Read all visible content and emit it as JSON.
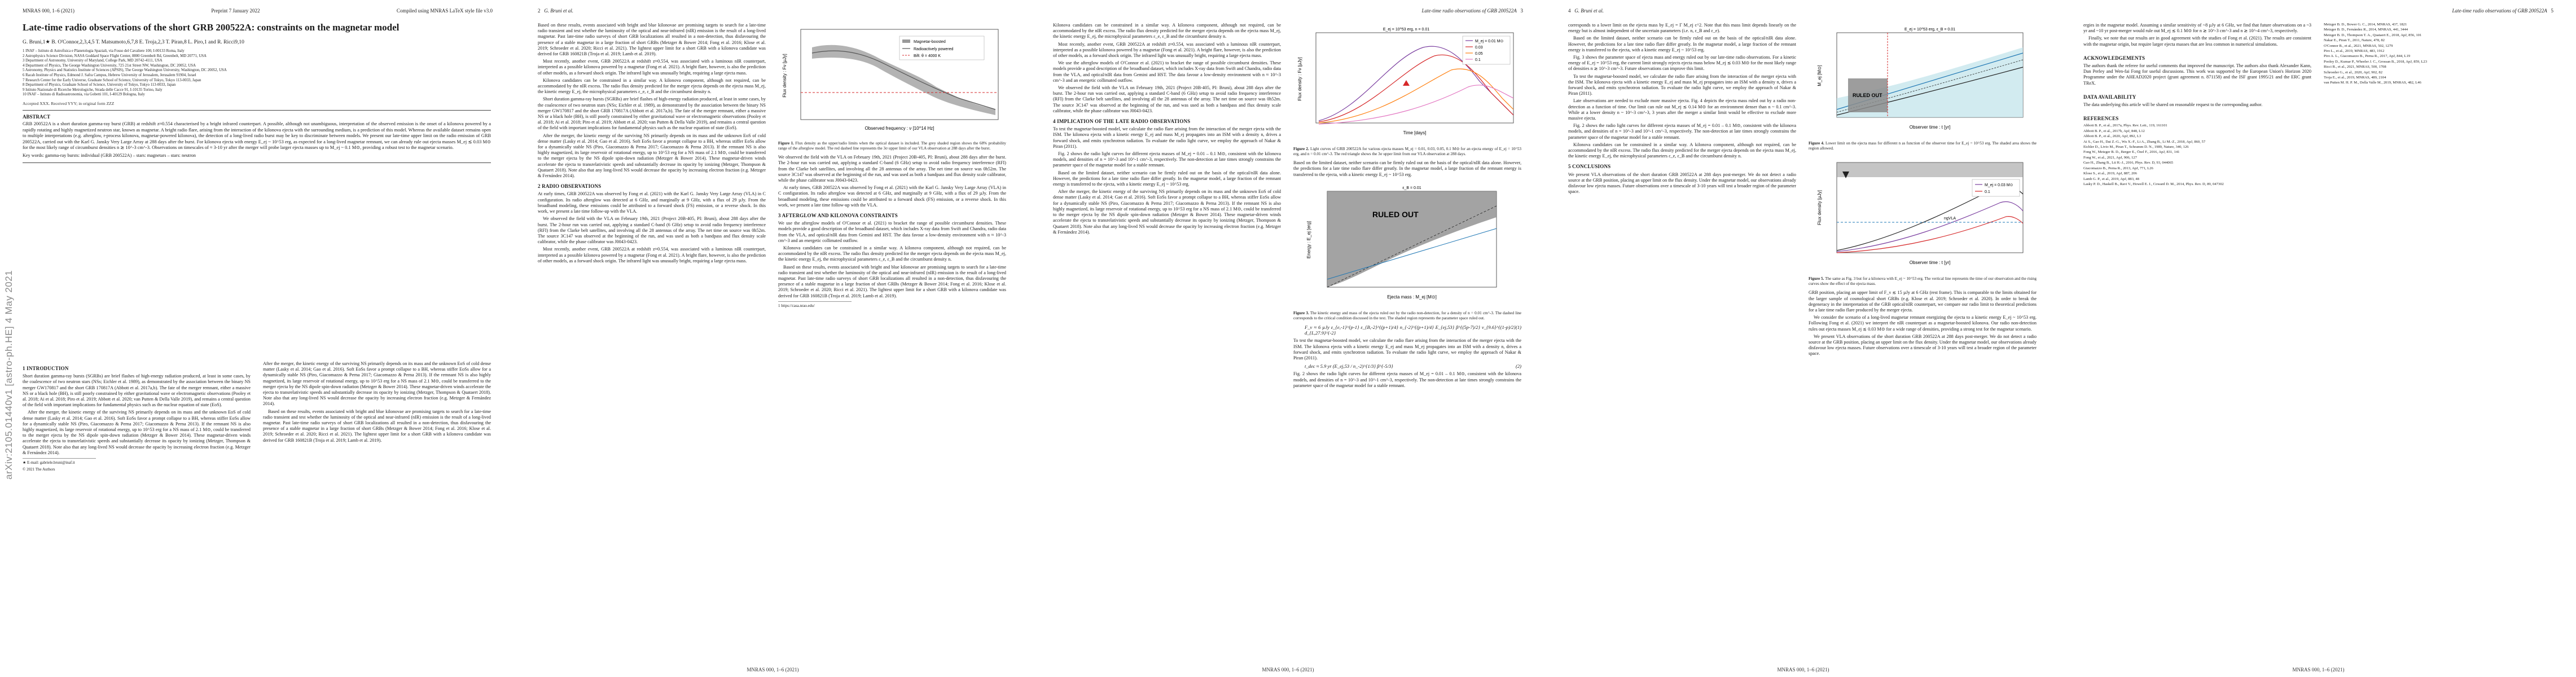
{
  "journal": "MNRAS 000, 1–6 (2021)",
  "footer": "MNRAS 000, 1–6 (2021)",
  "preprint_date": "Preprint 7 January 2022",
  "compiled": "Compiled using MNRAS LaTeX style file v3.0",
  "arxiv_stamp": "arXiv:2105.01440v1 [astro-ph.HE] 4 May 2021",
  "running_author": "G. Bruni et al.",
  "running_title": "Late-time radio observations of GRB 200522A",
  "page_numbers": [
    "2",
    "3",
    "4",
    "5"
  ],
  "title": "Late-time radio observations of the short GRB 200522A: constraints on the magnetar model",
  "authors": "G. Bruni,1★ B. O'Connor,2,3,4,5 T. Matsumoto,6,7,8 E. Troja,2,3 T. Piran,8 L. Piro,1 and R. Ricci9,10",
  "affiliations": [
    "1 INAF – Istituto di Astrofisica e Planetologia Spaziali, via Fosso del Cavaliere 100, I-00133 Roma, Italy",
    "2 Astrophysics Science Division, NASA Goddard Space Flight Center, 8800 Greenbelt Rd, Greenbelt, MD 20771, USA",
    "3 Department of Astronomy, University of Maryland, College Park, MD 20742-4111, USA",
    "4 Department of Physics, The George Washington University, 725 21st Street NW, Washington, DC 20052, USA",
    "5 Astronomy, Physics and Statistics Institute of Sciences (APSIS), The George Washington University, Washington, DC 20052, USA",
    "6 Racah Institute of Physics, Edmond J. Safra Campus, Hebrew University of Jerusalem, Jerusalem 91904, Israel",
    "7 Research Center for the Early Universe, Graduate School of Science, University of Tokyo, Tokyo 113-0033, Japan",
    "8 Department of Physics, Graduate School of Science, University of Tokyo, Tokyo 113-0033, Japan",
    "9 Istituto Nazionale di Ricerche Metrologiche, Strada delle Cacce 91, I-10135 Torino, Italy",
    "10 INAF – Istituto di Radioastronomia, via Gobetti 101, I-40129 Bologna, Italy"
  ],
  "accepted": "Accepted XXX. Received YYY; in original form ZZZ",
  "abstract_heading": "ABSTRACT",
  "abstract": "GRB 200522A is a short duration gamma-ray burst (GRB) at redshift z≈0.554 characterised by a bright infrared counterpart. A possible, although not unambiguous, interpretation of the observed emission is the onset of a kilonova powered by a rapidly rotating and highly magnetized neutron star, known as magnetar. A bright radio flare, arising from the interaction of the kilonova ejecta with the surrounding medium, is a prediction of this model. Whereas the available dataset remains open to multiple interpretations (e.g. afterglow, r-process kilonova, magnetar-powered kilonova), the detection of a long-lived radio burst may be key to discriminate between models. We present our late-time upper limit on the radio emission of GRB 200522A, carried out with the Karl G. Jansky Very Large Array at 288 days after the burst. For kilonova ejecta with energy E_ej ~ 10^53 erg, as expected for a long-lived magnetar remnant, we can already rule out ejecta masses M_ej ≲ 0.03 M⊙ for the most likely range of circumburst densities n ≳ 10^-3 cm^-3. Observations on timescales of ≈ 3-10 yr after the merger will probe larger ejecta masses up to M_ej ~ 0.1 M⊙, providing a robust test to the magnetar scenario.",
  "keywords": "Key words: gamma-ray bursts: individual (GRB 200522A) – stars: magnetars – stars: neutron",
  "sections": {
    "intro": "1 INTRODUCTION",
    "radio": "2 RADIO OBSERVATIONS",
    "afterglow": "3 AFTERGLOW AND KILONOVA CONSTRAINTS",
    "implication": "4 IMPLICATION OF THE LATE RADIO OBSERVATIONS",
    "conclusions": "5 CONCLUSIONS",
    "ack": "ACKNOWLEDGEMENTS",
    "data": "DATA AVAILABILITY",
    "refs": "REFERENCES"
  },
  "text": {
    "intro_1": "Short duration gamma-ray bursts (SGRBs) are brief flashes of high-energy radiation produced, at least in some cases, by the coalescence of two neutron stars (NSs; Eichler et al. 1989), as demonstrated by the association between the binary NS merger GW170817 and the short GRB 170817A (Abbott et al. 2017a,b). The fate of the merger remnant, either a massive NS or a black hole (BH), is still poorly constrained by either gravitational wave or electromagnetic observations (Pooley et al. 2018; Ai et al. 2018; Piro et al. 2019; Abbott et al. 2020; van Putten & Della Valle 2019), and remains a central question of the field with important implications for fundamental physics such as the nuclear equation of state (EoS).",
    "intro_2": "After the merger, the kinetic energy of the surviving NS primarily depends on its mass and the unknown EoS of cold dense matter (Lasky et al. 2014; Gao et al. 2016). Soft EoSs favor a prompt collapse to a BH, whereas stiffer EoSs allow for a dynamically stable NS (Piro, Giacomazzo & Perna 2017; Giacomazzo & Perna 2013). If the remnant NS is also highly magnetized, its large reservoir of rotational energy, up to 10^53 erg for a NS mass of 2.1 M⊙, could be transferred to the merger ejecta by the NS dipole spin-down radiation (Metzger & Bower 2014). These magnetar-driven winds accelerate the ejecta to transrelativistic speeds and substantially decrease its opacity by ionizing (Metzger, Thompson & Quataert 2018). Note also that any long-lived NS would decrease the opacity by increasing electron fraction (e.g. Metzger & Fernández 2014).",
    "intro_3": "Based on these results, events associated with bright and blue kilonovae are promising targets to search for a late-time radio transient and test whether the luminosity of the optical and near-infrared (nIR) emission is the result of a long-lived magnetar. Past late-time radio surveys of short GRB localizations all resulted in a non-detection, thus disfavouring the presence of a stable magnetar in a large fraction of short GRBs (Metzger & Bower 2014; Fong et al. 2016; Klose et al. 2019; Schroeder et al. 2020; Ricci et al. 2021). The lightest upper limit for a short GRB with a kilonova candidate was derived for GRB 160821B (Troja et al. 2019; Lamb et al. 2019).",
    "intro_4": "Most recently, another event, GRB 200522A at redshift z≈0.554, was associated with a luminous nIR counterpart, interpreted as a possible kilonova powered by a magnetar (Fong et al. 2021). A bright flare, however, is also the prediction of other models, as a forward shock origin. The infrared light was unusually bright, requiring a large ejecta mass.",
    "radio_1": "At early times, GRB 200522A was observed by Fong et al. (2021) with the Karl G. Jansky Very Large Array (VLA) in C configuration. Its radio afterglow was detected at 6 GHz, and marginally at 9 GHz, with a flux of 29 µJy. From the broadband modeling, these emissions could be attributed to a forward shock (FS) emission, or a reverse shock. In this work, we present a late time follow-up with the VLA.",
    "radio_2": "We observed the field with the VLA on February 19th, 2021 (Project 20B-405, PI: Bruni), about 288 days after the burst. The 2-hour run was carried out, applying a standard C-band (6 GHz) setup to avoid radio frequency interference (RFI) from the Clarke belt satellites, and involving all the 28 antennas of the array. The net time on source was 0h52m. The source 3C147 was observed at the beginning of the run, and was used as both a bandpass and flux density scale calibrator, while the phase calibrator was J0043-0423.",
    "afterglow_1": "We use the afterglow models of O'Connor et al. (2021) to bracket the range of possible circumburst densities. These models provide a good description of the broadband dataset, which includes X-ray data from Swift and Chandra, radio data from the VLA, and optical/nIR data from Gemini and HST. The data favour a low-density environment with n ≈ 10^-3 cm^-3 and an energetic collimated outflow.",
    "afterglow_2": "Kilonova candidates can be constrained in a similar way. A kilonova component, although not required, can be accommodated by the nIR excess. The radio flux density predicted for the merger ejecta depends on the ejecta mass M_ej, the kinetic energy E_ej, the microphysical parameters ε_e, ε_B and the circumburst density n.",
    "implication_1": "To test the magnetar-boosted model, we calculate the radio flare arising from the interaction of the merger ejecta with the ISM. The kilonova ejecta with a kinetic energy E_ej and mass M_ej propagates into an ISM with a density n, drives a forward shock, and emits synchrotron radiation. To evaluate the radio light curve, we employ the approach of Nakar & Piran (2011).",
    "implication_2": "Fig. 2 shows the radio light curves for different ejecta masses of M_ej = 0.01 – 0.1 M⊙, consistent with the kilonova models, and densities of n = 10^-3 and 10^-1 cm^-3, respectively. The non-detection at late times strongly constrains the parameter space of the magnetar model for a stable remnant.",
    "implication_3": "Based on the limited dataset, neither scenario can be firmly ruled out on the basis of the optical/nIR data alone. However, the predictions for a late time radio flare differ greatly. In the magnetar model, a large fraction of the remnant energy is transferred to the ejecta, with a kinetic energy E_ej ~ 10^53 erg.",
    "page4_1": "corresponds to a lower limit on the ejecta mass by E_ej = Γ M_ej c^2. Note that this mass limit depends linearly on the energy but is almost independent of the uncertain parameters (i.e. n, ε_B and ε_e).",
    "page4_2": "Fig. 3 shows the parameter space of ejecta mass and energy ruled out by our late-time radio observations. For a kinetic energy of E_ej = 10^53 erg, the current limit strongly rejects ejecta mass below M_ej ≲ 0.03 M⊙ for the most likely range of densities n ≳ 10^-3 cm^-3. Future observations can improve this limit.",
    "page4_3": "Late observations are needed to exclude more massive ejecta. Fig. 4 depicts the ejecta mass ruled out by a radio non-detection as a function of time. Our limit can rule out M_ej ≲ 0.14 M⊙ for an environment denser than n ~ 0.1 cm^-3. While at a lower density n ~ 10^-3 cm^-3, 3 years after the merger a similar limit would be effective to exclude more massive ejecta.",
    "page4_4": "GRB position, placing an upper limit of F_ν ≲ 15 µJy at 6 GHz (rest frame). This is comparable to the limits obtained for the larger sample of cosmological short GRBs (e.g. Klose et al. 2019; Schroeder et al. 2020). In order to break the degeneracy in the interpretation of the GRB optical/nIR counterpart, we compare our radio limit to theoretical predictions for a late time radio flare produced by the merger ejecta.",
    "page4_5": "We consider the scenario of a long-lived magnetar remnant energizing the ejecta to a kinetic energy E_ej ~ 10^53 erg. Following Fong et al. (2021) we interpret the nIR counterpart as a magnetar-boosted kilonova. Our radio non-detection rules out ejecta masses M_ej ≲ 0.03 M⊙ for a wide range of densities, providing a strong test for the magnetar scenario.",
    "conclusions_1": "We present VLA observations of the short duration GRB 200522A at 288 days post-merger. We do not detect a radio source at the GRB position, placing an upper limit on the flux density. Under the magnetar model, our observations already disfavour low ejecta masses. Future observations over a timescale of 3-10 years will test a broader region of the parameter space.",
    "page5_1": "ergies in the magnetar model. Assuming a similar sensitivity of ~8 µJy at 6 GHz, we find that future observations on a ~3 yr and ~10 yr post-merger would rule out M_ej ≲ 0.1 M⊙ for n ≳ 10^-3 cm^-3 and n ≳ 10^-4 cm^-3, respectively.",
    "page5_2": "Finally, we note that our results are in good agreement with the studies of Fong et al. (2021). The results are consistent with the magnetar origin, but require larger ejecta masses that are less common in numerical simulations.",
    "ack": "The authors thank the referee for useful comments that improved the manuscript. The authors also thank Alexander Kann, Dan Perley and Wen-fai Fong for useful discussions. This work was supported by the European Union's Horizon 2020 Programme under the AHEAD2020 project (grant agreement n. 871158) and the ISF grant 1995/21 and the ERC grant TReX.",
    "data": "The data underlying this article will be shared on reasonable request to the corresponding author."
  },
  "footnote": "★ E-mail: gabriele.bruni@inaf.it",
  "footnote2": "1 https://casa.nrao.edu/",
  "copyright": "© 2021 The Authors",
  "equations": {
    "eq1": "F_ν ≈ 6 µJy ε_{e,-1}^{p-1} ε_{B,-2}^{(p+1)/4} n_{-2}^{(p+1)/4} E_{ej,53} β^{(5p-7)/2} ν_{9.6}^{(1-p)/2} d_{L,27.9}^{-2}",
    "eq1_num": "(1)",
    "eq2": "t_dec ≈ 5.9 yr (E_ej,53 / n_-2)^{1/3} β^{-5/3}",
    "eq2_num": "(2)"
  },
  "figures": {
    "fig1": {
      "label": "Figure 1.",
      "caption": "Flux density as the upper/radio limits when the optical dataset is included. The grey shaded region shows the 68% probability range of the afterglow model. The red dashed line represents the 3σ upper limit of our VLA observation at 288 days after the burst."
    },
    "fig2": {
      "label": "Figure 2.",
      "caption": "Light curves of GRB 200522A for various ejecta masses M_ej = 0.01, 0.03, 0.05, 0.1 M⊙ for an ejecta energy of E_ej = 10^53 erg, and n = 0.01 cm^-3. The red triangle shows the 3σ upper limit from our VLA observation at 288 days."
    },
    "fig3": {
      "label": "Figure 3.",
      "caption": "The kinetic energy and mass of the ejecta ruled out by the radio non-detection, for a density of n = 0.01 cm^-3. The dashed line corresponds to the critical condition discussed in the text. The shaded region represents the parameter space ruled out."
    },
    "fig4": {
      "label": "Figure 4.",
      "caption": "Lower limit on the ejecta mass for different n as function of the observer time for E_ej = 10^53 erg. The shaded area shows the region allowed."
    },
    "fig5": {
      "label": "Figure 5.",
      "caption": "The same as Fig. 3 but for a kilonova with E_ej ~ 10^53 erg. The vertical line represents the time of our observation and the rising curves show the effect of the ejecta mass."
    }
  },
  "references": [
    "Abbott B. P., et al., 2017a, Phys. Rev. Lett., 119, 161101",
    "Abbott B. P., et al., 2017b, ApJ, 848, L12",
    "Abbott B. P., et al., 2020, ApJ, 892, L3",
    "Ai S., Gao H., Dai Z.-G., Wu X.-F., Li A., Zhang B., Li M.-Z., 2018, ApJ, 860, 57",
    "Eichler D., Livio M., Piran T., Schramm D. N., 1989, Nature, 340, 126",
    "Fong W., Metzger B. D., Berger E., Özel F., 2016, ApJ, 831, 141",
    "Fong W., et al., 2021, ApJ, 906, 127",
    "Gao H., Zhang B., Lü H.-J., 2016, Phys. Rev. D, 93, 044065",
    "Giacomazzo B., Perna R., 2013, ApJ, 771, L26",
    "Klose S., et al., 2019, ApJ, 887, 206",
    "Lamb G. P., et al., 2019, ApJ, 883, 48",
    "Lasky P. D., Haskell B., Ravi V., Howell E. J., Coward D. M., 2014, Phys. Rev. D, 89, 047302",
    "Metzger B. D., Bower G. C., 2014, MNRAS, 437, 1821",
    "Metzger B. D., Fernández R., 2014, MNRAS, 441, 3444",
    "Metzger B. D., Thompson T. A., Quataert E., 2018, ApJ, 856, 101",
    "Nakar E., Piran T., 2011, Nature, 478, 82",
    "O'Connor B., et al., 2021, MNRAS, 502, 1279",
    "Piro L., et al., 2019, MNRAS, 483, 1912",
    "Piro A. L., Giacomazzo B., Perna R., 2017, ApJ, 844, L19",
    "Pooley D., Kumar P., Wheeler J. C., Grossan B., 2018, ApJ, 859, L23",
    "Ricci R., et al., 2021, MNRAS, 500, 1708",
    "Schroeder G., et al., 2020, ApJ, 902, 82",
    "Troja E., et al., 2019, MNRAS, 489, 2104",
    "van Putten M. H. P. M., Della Valle M., 2019, MNRAS, 482, L46"
  ],
  "plot_labels": {
    "fig1_xlabel": "Observed frequency : ν [10^14 Hz]",
    "fig1_ylabel": "Flux density : Fν [µJy]",
    "fig1_legend": [
      "Magnetar-boosted",
      "Radioactively powered",
      "Bift: θ = 4000 K"
    ],
    "fig2_xlabel": "Time [days]",
    "fig2_ylabel": "Flux density : Fν [µJy]",
    "fig2_title": "E_ej = 10^53 erg, n = 0.01",
    "fig2_legend": [
      "M_ej = 0.01 M⊙",
      "0.03",
      "0.05",
      "0.1"
    ],
    "fig3_xlabel": "Ejecta mass : M_ej [M⊙]",
    "fig3_ylabel": "Energy : E_ej [erg]",
    "fig3_title": "ε_B = 0.01",
    "ruled_out": "RULED OUT",
    "fig4_xlabel": "Observer time : t [yr]",
    "fig4_ylabel": "M_ej [M⊙]",
    "fig4_title": "E_ej = 10^53 erg, ε_B = 0.01",
    "fig5_xlabel": "Observer time : t [yr]",
    "fig5_ylabel": "Flux density [µJy]",
    "fig5_legend": [
      "M_ej = 0.03 M⊙",
      "0.1"
    ],
    "vla_label": "ngVLA"
  },
  "colors": {
    "link": "#1f4fa3",
    "model_grey": "#9a9a9a",
    "ruled_out_grey": "#8c8c8c",
    "red": "#d62728",
    "orange": "#ff7f0e",
    "purple": "#7b3fa0",
    "blue": "#1f77b4",
    "pink": "#e377c2",
    "teal_fill": "#bfe3ea"
  }
}
